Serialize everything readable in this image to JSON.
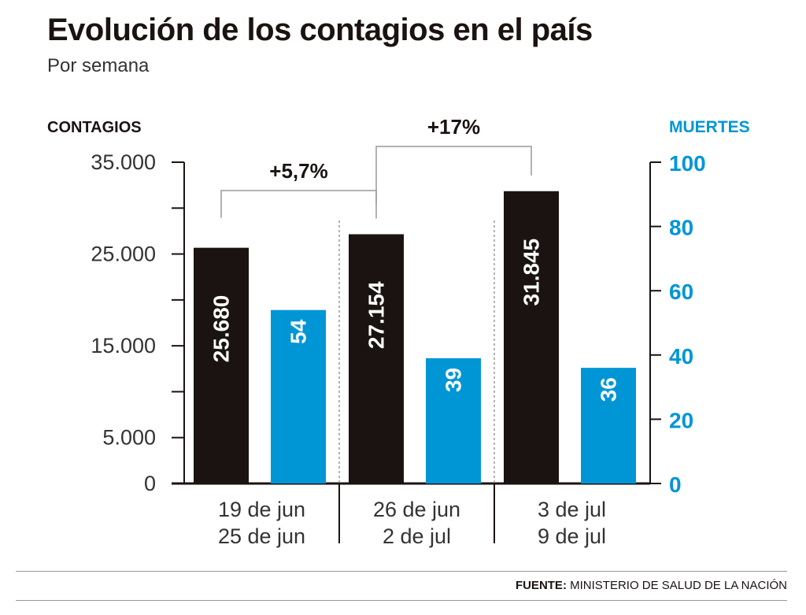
{
  "title": "Evolución de los contagios en el país",
  "subtitle": "Por semana",
  "footer": {
    "label": "FUENTE:",
    "source": "MINISTERIO DE SALUD DE LA NACIÓN"
  },
  "chart_data": {
    "type": "bar",
    "categories": [
      [
        "19 de jun",
        "25 de jun"
      ],
      [
        "26 de jun",
        "2 de jul"
      ],
      [
        "3 de jul",
        "9 de jul"
      ]
    ],
    "series": [
      {
        "name": "CONTAGIOS",
        "axis": "left",
        "color": "#1a1311",
        "values": [
          25680,
          27154,
          31845
        ],
        "labels": [
          "25.680",
          "27.154",
          "31.845"
        ]
      },
      {
        "name": "MUERTES",
        "axis": "right",
        "color": "#0096d6",
        "values": [
          54,
          39,
          36
        ],
        "labels": [
          "54",
          "39",
          "36"
        ]
      }
    ],
    "left_axis": {
      "label": "CONTAGIOS",
      "ylim": [
        0,
        35000
      ],
      "ticks": [
        0,
        5000,
        15000,
        25000,
        35000
      ],
      "tick_labels": [
        "0",
        "5.000",
        "15.000",
        "25.000",
        "35.000"
      ],
      "minor_ticks": [
        10000,
        20000,
        30000
      ]
    },
    "right_axis": {
      "label": "MUERTES",
      "ylim": [
        0,
        100
      ],
      "ticks": [
        0,
        20,
        40,
        60,
        80,
        100
      ],
      "tick_labels": [
        "0",
        "20",
        "40",
        "60",
        "80",
        "100"
      ]
    },
    "annotations": [
      {
        "text": "+5,7%",
        "from": 0,
        "to": 1
      },
      {
        "text": "+17%",
        "from": 1,
        "to": 2
      }
    ],
    "grid": false
  }
}
